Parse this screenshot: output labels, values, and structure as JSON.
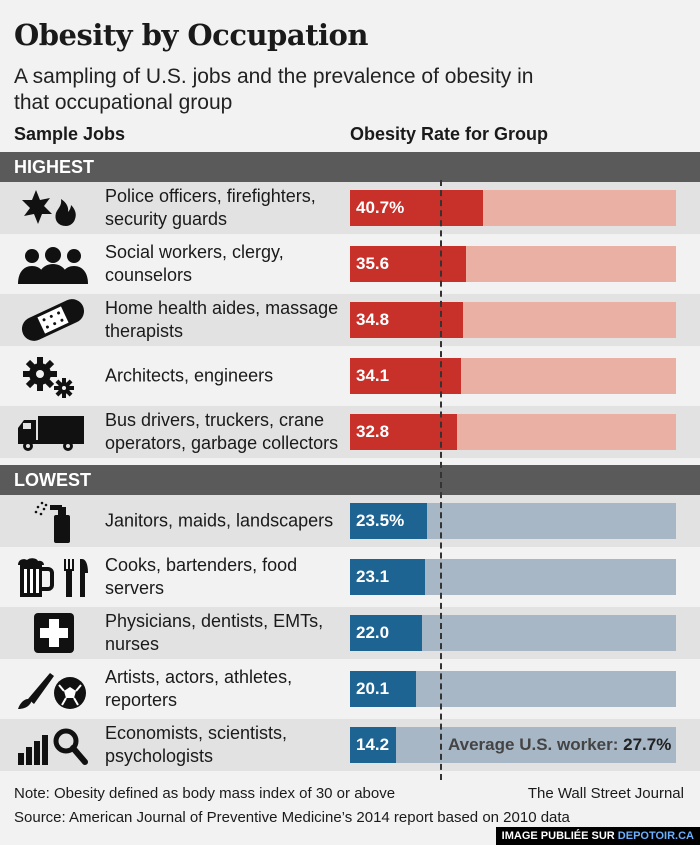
{
  "title": "Obesity by Occupation",
  "subtitle": "A sampling of U.S. jobs and the prevalence of obesity in that occupational group",
  "col_left": "Sample Jobs",
  "col_right": "Obesity Rate for Group",
  "sections": {
    "highest": "HIGHEST",
    "lowest": "LOWEST"
  },
  "colors": {
    "highest_fill": "#c8302a",
    "highest_track": "#e9b0a3",
    "lowest_fill": "#1d6493",
    "lowest_track": "#a8b7c6"
  },
  "chart_data": {
    "type": "bar",
    "orientation": "horizontal",
    "categories": [
      "Police officers, firefighters, security guards",
      "Social workers, clergy, counselors",
      "Home health aides, massage therapists",
      "Architects, engineers",
      "Bus drivers, truckers, crane operators, garbage collectors",
      "Janitors, maids, landscapers",
      "Cooks, bartenders, food servers",
      "Physicians, dentists, EMTs, nurses",
      "Artists, actors, athletes, reporters",
      "Economists, scientists, psychologists"
    ],
    "values": [
      40.7,
      35.6,
      34.8,
      34.1,
      32.8,
      23.5,
      23.1,
      22.0,
      20.1,
      14.2
    ],
    "value_labels": [
      "40.7%",
      "35.6",
      "34.8",
      "34.1",
      "32.8",
      "23.5%",
      "23.1",
      "22.0",
      "20.1",
      "14.2"
    ],
    "groups": [
      "highest",
      "highest",
      "highest",
      "highest",
      "highest",
      "lowest",
      "lowest",
      "lowest",
      "lowest",
      "lowest"
    ],
    "icons": [
      "badge-and-flame-icon",
      "people-icon",
      "bandage-icon",
      "gears-icon",
      "truck-icon",
      "spray-bottle-icon",
      "beer-and-utensils-icon",
      "medical-cross-icon",
      "brush-and-ball-icon",
      "bar-chart-magnifier-icon"
    ],
    "reference_line": {
      "label": "Average U.S. worker: ",
      "value_label": "27.7%",
      "value": 27.7
    },
    "xlim": [
      0,
      100
    ]
  },
  "note": "Note: Obesity defined as body mass index of 30 or above",
  "credit": "The Wall Street Journal",
  "source": "Source: American Journal of Preventive Medicine’s 2014 report based on 2010 data",
  "watermark": {
    "prefix": "IMAGE PUBLIÉE SUR ",
    "site": "DEPOTOIR.CA"
  }
}
